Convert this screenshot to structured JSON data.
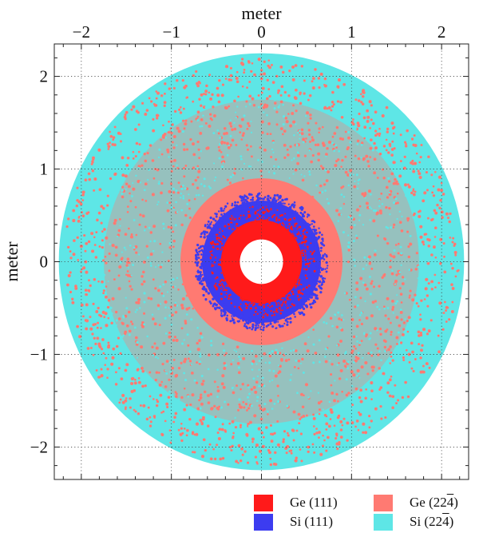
{
  "chart_data": {
    "type": "scatter",
    "xlabel": "meter",
    "ylabel": "meter",
    "xlim": [
      -2.3,
      2.3
    ],
    "ylim": [
      -2.35,
      2.35
    ],
    "x_ticks": [
      -2,
      -1,
      0,
      1,
      2
    ],
    "y_ticks": [
      -2,
      -1,
      0,
      1,
      2
    ],
    "x_tick_labels": [
      "−2",
      "−1",
      "0",
      "1",
      "2"
    ],
    "y_tick_labels": [
      "−2",
      "−1",
      "0",
      "1",
      "2"
    ],
    "grid": "dotted",
    "legend_position": "bottom-right",
    "series": [
      {
        "name": "Ge (111)",
        "color": "#ff1a1a",
        "r_inner": 0.24,
        "r_outer": 0.45,
        "fill": "solid"
      },
      {
        "name": "Si (111)",
        "color": "#3c3cf0",
        "r_inner": 0.45,
        "r_outer": 0.72,
        "fill": "scattered"
      },
      {
        "name": "Ge (22̄4̄)",
        "color": "#ff7a72",
        "r_inner": 0.45,
        "r_outer": 2.2,
        "fill": "scattered"
      },
      {
        "name": "Si (22̄4̄)",
        "color": "#5ee6e6",
        "r_inner": 0.9,
        "r_outer": 2.25,
        "fill": "scattered"
      }
    ],
    "center_hole_radius": 0.24
  },
  "legend": {
    "items": [
      {
        "prefix": "Ge (111)",
        "bar": "",
        "suffix": "",
        "color": "#ff1a1a"
      },
      {
        "prefix": "Ge (22",
        "bar": "4",
        "suffix": ")",
        "color": "#ff7a72"
      },
      {
        "prefix": "Si (111)",
        "bar": "",
        "suffix": "",
        "color": "#3c3cf0"
      },
      {
        "prefix": "Si (22",
        "bar": "4",
        "suffix": ")",
        "color": "#5ee6e6"
      }
    ]
  }
}
